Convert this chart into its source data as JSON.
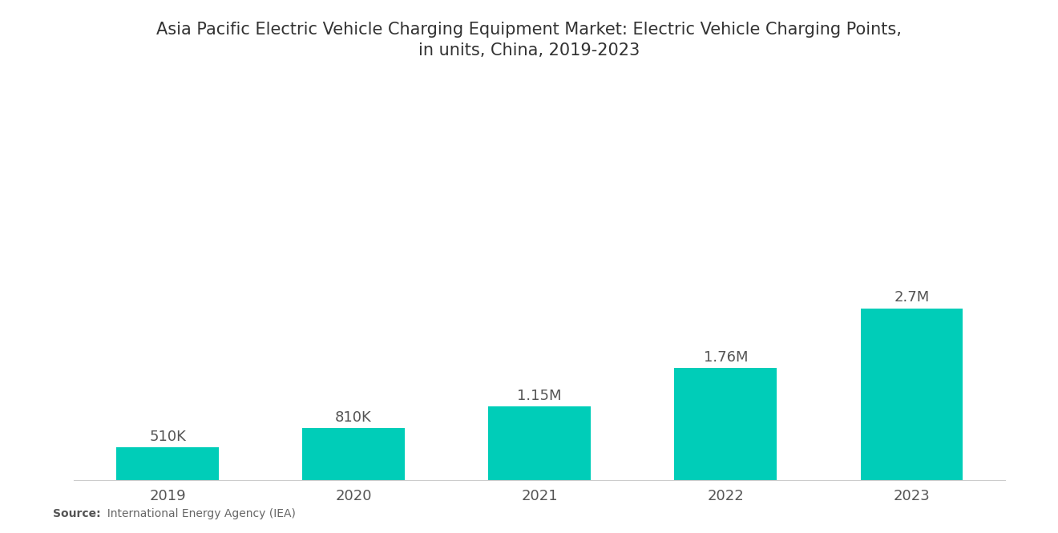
{
  "title": "Asia Pacific Electric Vehicle Charging Equipment Market: Electric Vehicle Charging Points,\nin units, China, 2019-2023",
  "categories": [
    "2019",
    "2020",
    "2021",
    "2022",
    "2023"
  ],
  "values": [
    510000,
    810000,
    1150000,
    1760000,
    2700000
  ],
  "labels": [
    "510K",
    "810K",
    "1.15M",
    "1.76M",
    "2.7M"
  ],
  "bar_color": "#00CDB8",
  "background_color": "#FFFFFF",
  "title_fontsize": 15,
  "label_fontsize": 13,
  "tick_fontsize": 13,
  "source_bold": "Source:",
  "source_normal": "  International Energy Agency (IEA)",
  "ylim": [
    0,
    4200000
  ],
  "bar_width": 0.55
}
